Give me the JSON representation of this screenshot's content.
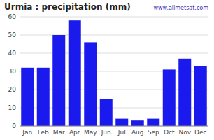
{
  "chart_data": {
    "type": "bar",
    "title": "Urmia : precipitation (mm)",
    "categories": [
      "Jan",
      "Feb",
      "Mar",
      "Apr",
      "May",
      "Jun",
      "Jul",
      "Aug",
      "Sep",
      "Oct",
      "Nov",
      "Dec"
    ],
    "values": [
      32,
      32,
      50,
      58,
      46,
      15,
      4,
      3,
      4,
      31,
      37,
      33
    ],
    "color": "#1a1aee",
    "ylim": [
      0,
      60
    ],
    "yticks": [
      0,
      10,
      20,
      30,
      40,
      50,
      60
    ],
    "grid": true,
    "annotations": [
      "www.allmetsat.com"
    ]
  }
}
